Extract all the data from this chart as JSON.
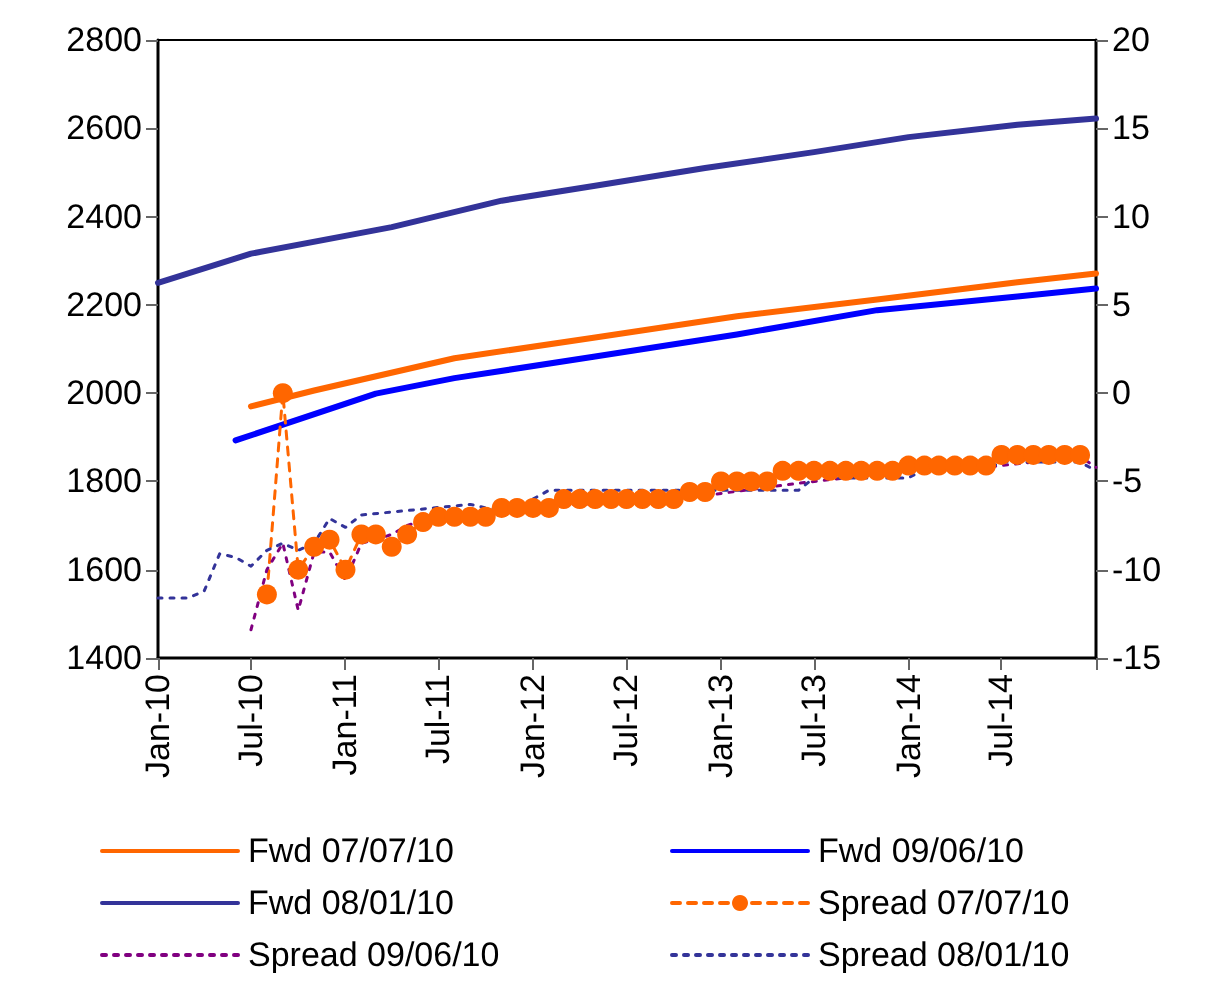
{
  "chart_data": {
    "type": "line",
    "xlim": [
      "2010-01",
      "2015-01"
    ],
    "xticks": [
      {
        "value": "2010-01",
        "label": "Jan-10"
      },
      {
        "value": "2010-07",
        "label": "Jul-10"
      },
      {
        "value": "2011-01",
        "label": "Jan-11"
      },
      {
        "value": "2011-07",
        "label": "Jul-11"
      },
      {
        "value": "2012-01",
        "label": "Jan-12"
      },
      {
        "value": "2012-07",
        "label": "Jul-12"
      },
      {
        "value": "2013-01",
        "label": "Jan-13"
      },
      {
        "value": "2013-07",
        "label": "Jul-13"
      },
      {
        "value": "2014-01",
        "label": "Jan-14"
      },
      {
        "value": "2014-07",
        "label": "Jul-14"
      },
      {
        "value": "2015-01",
        "label": null
      }
    ],
    "ylim": [
      1400,
      2800
    ],
    "yticks": [
      1400,
      1600,
      1800,
      2000,
      2200,
      2400,
      2600,
      2800
    ],
    "y2lim": [
      -15,
      20
    ],
    "y2ticks": [
      -15,
      -10,
      -5,
      0,
      5,
      10,
      15,
      20
    ],
    "grid": false,
    "legend": "bottom",
    "series": [
      {
        "name": "Fwd 07/07/10",
        "color": "#ff6600",
        "line_style": "solid",
        "x": [
          "2010-07",
          "2010-11",
          "2011-08",
          "2012-05",
          "2013-02",
          "2013-11",
          "2014-08",
          "2015-01"
        ],
        "values": [
          1970,
          2006,
          2079,
          2126,
          2174,
          2212,
          2251,
          2271
        ]
      },
      {
        "name": "Fwd 09/06/10",
        "color": "#0000ff",
        "line_style": "solid",
        "x": [
          "2010-06",
          "2011-03",
          "2011-08",
          "2012-05",
          "2013-02",
          "2013-11",
          "2014-08",
          "2015-01"
        ],
        "values": [
          1893,
          1999,
          2034,
          2083,
          2133,
          2188,
          2219,
          2237
        ]
      },
      {
        "name": "Fwd 08/01/10",
        "color": "#333399",
        "line_style": "solid",
        "x": [
          "2010-01",
          "2010-07",
          "2011-04",
          "2011-11",
          "2012-05",
          "2012-12",
          "2013-07",
          "2014-01",
          "2014-08",
          "2015-01"
        ],
        "values": [
          2250,
          2316,
          2376,
          2436,
          2470,
          2510,
          2546,
          2580,
          2608,
          2622
        ]
      },
      {
        "name": "Spread 07/07/10",
        "color": "#ff6600",
        "line_style": "dashed",
        "marker": "circle",
        "axis": "y2",
        "x": [
          "2010-08",
          "2010-09",
          "2010-10",
          "2010-11",
          "2010-12",
          "2011-01",
          "2011-02",
          "2011-03",
          "2011-04",
          "2011-05",
          "2011-06",
          "2011-07",
          "2011-08",
          "2011-09",
          "2011-10",
          "2011-11",
          "2011-12",
          "2012-01",
          "2012-02",
          "2012-03",
          "2012-04",
          "2012-05",
          "2012-06",
          "2012-07",
          "2012-08",
          "2012-09",
          "2012-10",
          "2012-11",
          "2012-12",
          "2013-01",
          "2013-02",
          "2013-03",
          "2013-04",
          "2013-05",
          "2013-06",
          "2013-07",
          "2013-08",
          "2013-09",
          "2013-10",
          "2013-11",
          "2013-12",
          "2014-01",
          "2014-02",
          "2014-03",
          "2014-04",
          "2014-05",
          "2014-06",
          "2014-07",
          "2014-08",
          "2014-09",
          "2014-10",
          "2014-11",
          "2014-12"
        ],
        "values": [
          -11.4,
          0,
          -10,
          -8.7,
          -8.3,
          -10,
          -8,
          -8,
          -8.7,
          -8,
          -7.3,
          -7,
          -7,
          -7,
          -7,
          -6.5,
          -6.5,
          -6.5,
          -6.5,
          -6,
          -6,
          -6,
          -6,
          -6,
          -6,
          -6,
          -6,
          -5.6,
          -5.6,
          -5,
          -5,
          -5,
          -5,
          -4.4,
          -4.4,
          -4.4,
          -4.4,
          -4.4,
          -4.4,
          -4.4,
          -4.4,
          -4.1,
          -4.1,
          -4.1,
          -4.1,
          -4.1,
          -4.1,
          -3.5,
          -3.5,
          -3.5,
          -3.5,
          -3.5,
          -3.5
        ]
      },
      {
        "name": "Spread 09/06/10",
        "color": "#800080",
        "line_style": "dotted",
        "axis": "y2",
        "x": [
          "2010-07",
          "2010-08",
          "2010-09",
          "2010-10",
          "2010-11",
          "2010-12",
          "2011-01",
          "2011-02",
          "2011-03",
          "2011-04",
          "2011-05",
          "2011-06",
          "2011-12",
          "2012-06",
          "2012-12",
          "2013-06",
          "2013-12",
          "2014-06",
          "2014-12",
          "2015-01"
        ],
        "values": [
          -13.4,
          -10,
          -8.5,
          -12.3,
          -9,
          -9,
          -10.6,
          -8.5,
          -8.3,
          -8,
          -7.5,
          -7.2,
          -6.5,
          -6.2,
          -5.8,
          -5.1,
          -4.5,
          -4.2,
          -3.6,
          -4.2
        ]
      },
      {
        "name": "Spread 08/01/10",
        "color": "#333399",
        "line_style": "dotted",
        "axis": "y2",
        "x": [
          "2010-01",
          "2010-02",
          "2010-03",
          "2010-04",
          "2010-05",
          "2010-06",
          "2010-07",
          "2010-08",
          "2010-09",
          "2010-10",
          "2010-11",
          "2010-12",
          "2011-01",
          "2011-02",
          "2011-09",
          "2011-12",
          "2012-01",
          "2012-02",
          "2013-06",
          "2013-07",
          "2014-01",
          "2014-02",
          "2014-06",
          "2014-07",
          "2014-12",
          "2015-01"
        ],
        "values": [
          -11.6,
          -11.6,
          -11.6,
          -11.2,
          -9.1,
          -9.3,
          -9.8,
          -8.9,
          -8.5,
          -8.9,
          -8.5,
          -7.1,
          -7.6,
          -6.9,
          -6.3,
          -6.9,
          -6,
          -5.5,
          -5.5,
          -4.8,
          -4.8,
          -4.3,
          -4.3,
          -3.9,
          -3.9,
          -4.4
        ]
      }
    ]
  }
}
